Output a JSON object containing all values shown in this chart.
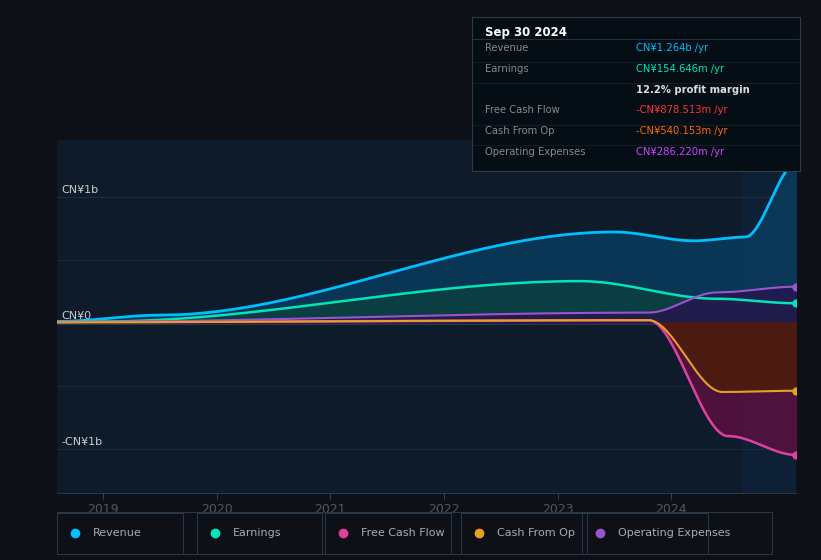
{
  "bg_color": "#0d1117",
  "chart_bg": "#0d1b2a",
  "grid_color": "#1e2d3d",
  "zero_line_color": "#ffffff",
  "title_label": "CN¥1b",
  "neg_title_label": "-CN¥1b",
  "zero_label": "CN¥0",
  "x_ticks": [
    2019,
    2020,
    2021,
    2022,
    2023,
    2024
  ],
  "tooltip_title": "Sep 30 2024",
  "tooltip_items": [
    {
      "label": "Revenue",
      "value": "CN¥1.264b /yr",
      "color": "#00bfff"
    },
    {
      "label": "Earnings",
      "value": "CN¥154.646m /yr",
      "color": "#00e6b8"
    },
    {
      "label": "",
      "value": "12.2% profit margin",
      "color": "#dddddd"
    },
    {
      "label": "Free Cash Flow",
      "value": "-CN¥878.513m /yr",
      "color": "#ff3333"
    },
    {
      "label": "Cash From Op",
      "value": "-CN¥540.153m /yr",
      "color": "#ff6600"
    },
    {
      "label": "Operating Expenses",
      "value": "CN¥286.220m /yr",
      "color": "#cc44ff"
    }
  ],
  "legend": [
    {
      "label": "Revenue",
      "color": "#00bfff"
    },
    {
      "label": "Earnings",
      "color": "#00e6b8"
    },
    {
      "label": "Free Cash Flow",
      "color": "#e040a0"
    },
    {
      "label": "Cash From Op",
      "color": "#e8a020"
    },
    {
      "label": "Operating Expenses",
      "color": "#9955cc"
    }
  ],
  "revenue_color": "#00bfff",
  "earnings_color": "#00e6b8",
  "fcf_color": "#e040a0",
  "cashfromop_color": "#e8a020",
  "opex_color": "#9955cc",
  "revenue_fill": "#0a3a5a",
  "earnings_fill": "#0a4040",
  "fcf_fill": "#5a1040",
  "cashop_fill": "#4a2000",
  "highlight_x_start": 2024.62,
  "highlight_color": "#0d2035",
  "ymin": -1.35,
  "ymax": 1.45,
  "xmin": 2018.6,
  "xmax": 2025.1
}
